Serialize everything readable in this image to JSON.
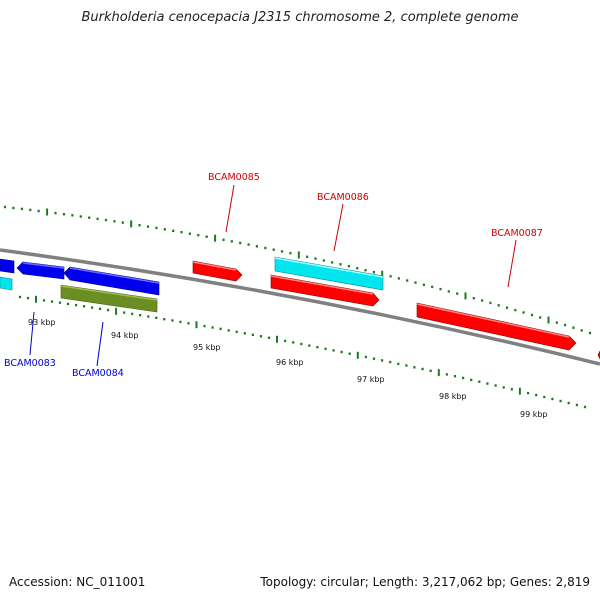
{
  "title": "Burkholderia cenocepacia J2315 chromosome 2, complete genome",
  "footer": {
    "accession": "Accession: NC_011001",
    "summary": "Topology: circular; Length: 3,217,062 bp; Genes: 2,819"
  },
  "colors": {
    "backbone": "#808080",
    "tick": "#1e7b1e",
    "forward_gene": "#ff0000",
    "forward_label": "#cc0000",
    "reverse_gene": "#0000ee",
    "reverse_label": "#0000cc",
    "cyan_gene": "#00e5ee",
    "olive_gene": "#6b8e23"
  },
  "kbp_labels": [
    "93 kbp",
    "94 kbp",
    "95 kbp",
    "96 kbp",
    "97 kbp",
    "98 kbp",
    "99 kbp"
  ],
  "gene_labels": [
    {
      "id": "BCAM0083",
      "strand": "reverse"
    },
    {
      "id": "BCAM0084",
      "strand": "reverse"
    },
    {
      "id": "BCAM0085",
      "strand": "forward"
    },
    {
      "id": "BCAM0086",
      "strand": "forward"
    },
    {
      "id": "BCAM0087",
      "strand": "forward"
    }
  ]
}
